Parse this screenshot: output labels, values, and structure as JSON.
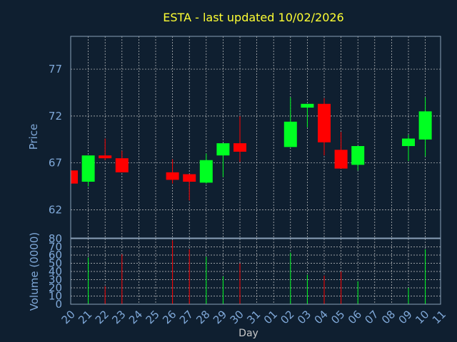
{
  "chart_data": {
    "type": "candlestick",
    "title": "ESTA - last updated 10/02/2026",
    "ylabel": "Price",
    "volume_label": "Volume (0000)",
    "xlabel": "Day",
    "ylim": [
      59,
      80.5
    ],
    "volume_ylim": [
      0,
      80
    ],
    "price_ticks": [
      62,
      67,
      72,
      77
    ],
    "volume_ticks": [
      0,
      10,
      20,
      30,
      40,
      50,
      60,
      70,
      80
    ],
    "x_ticks": [
      "20",
      "21",
      "22",
      "23",
      "24",
      "25",
      "26",
      "27",
      "28",
      "29",
      "30",
      "31",
      "01",
      "02",
      "03",
      "04",
      "05",
      "06",
      "07",
      "08",
      "09",
      "10",
      "11"
    ],
    "colors": {
      "up": "#00ff22",
      "down": "#ff0000",
      "background": "#0f1f30",
      "frame": "#8aa0b8",
      "grid": "#c8c8c8"
    },
    "candles": [
      {
        "day": "20",
        "open": 66.2,
        "close": 64.8,
        "high": 66.2,
        "low": 64.8,
        "volume": 0
      },
      {
        "day": "21",
        "open": 65.0,
        "close": 67.8,
        "high": 67.8,
        "low": 64.5,
        "volume": 57
      },
      {
        "day": "22",
        "open": 67.8,
        "close": 67.5,
        "high": 69.6,
        "low": 67.3,
        "volume": 22
      },
      {
        "day": "23",
        "open": 67.5,
        "close": 66.0,
        "high": 68.3,
        "low": 66.0,
        "volume": 61
      },
      {
        "day": "26",
        "open": 66.0,
        "close": 65.2,
        "high": 67.4,
        "low": 64.8,
        "volume": 78
      },
      {
        "day": "27",
        "open": 65.8,
        "close": 65.0,
        "high": 65.8,
        "low": 63.0,
        "volume": 67
      },
      {
        "day": "28",
        "open": 64.9,
        "close": 67.3,
        "high": 68.0,
        "low": 64.8,
        "volume": 58
      },
      {
        "day": "29",
        "open": 67.8,
        "close": 69.1,
        "high": 69.1,
        "low": 65.5,
        "volume": 34
      },
      {
        "day": "30",
        "open": 69.1,
        "close": 68.2,
        "high": 72.0,
        "low": 67.1,
        "volume": 50
      },
      {
        "day": "02",
        "open": 68.7,
        "close": 71.4,
        "high": 74.0,
        "low": 68.7,
        "volume": 63
      },
      {
        "day": "03",
        "open": 72.9,
        "close": 73.3,
        "high": 73.3,
        "low": 70.8,
        "volume": 36
      },
      {
        "day": "04",
        "open": 73.3,
        "close": 69.2,
        "high": 73.9,
        "low": 67.8,
        "volume": 35
      },
      {
        "day": "05",
        "open": 68.4,
        "close": 66.4,
        "high": 70.3,
        "low": 66.4,
        "volume": 40
      },
      {
        "day": "06",
        "open": 66.8,
        "close": 68.8,
        "high": 68.8,
        "low": 66.2,
        "volume": 28
      },
      {
        "day": "09",
        "open": 68.8,
        "close": 69.6,
        "high": 70.0,
        "low": 67.2,
        "volume": 20
      },
      {
        "day": "10",
        "open": 69.5,
        "close": 72.5,
        "high": 74.0,
        "low": 67.7,
        "volume": 67
      }
    ]
  }
}
